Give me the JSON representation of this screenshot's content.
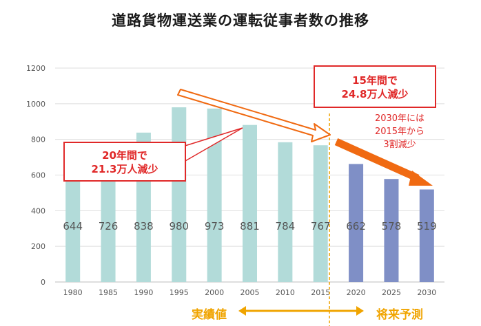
{
  "title": "道路貨物運送業の運転従事者数の推移",
  "chart_data": {
    "type": "bar",
    "categories": [
      "1980",
      "1985",
      "1990",
      "1995",
      "2000",
      "2005",
      "2010",
      "2015",
      "2020",
      "2025",
      "2030"
    ],
    "values": [
      644,
      726,
      838,
      980,
      973,
      881,
      784,
      767,
      662,
      578,
      519
    ],
    "bar_colors": [
      "#b2dbd9",
      "#b2dbd9",
      "#b2dbd9",
      "#b2dbd9",
      "#b2dbd9",
      "#b2dbd9",
      "#b2dbd9",
      "#b2dbd9",
      "#7f8fc6",
      "#7f8fc6",
      "#7f8fc6"
    ],
    "ylim": [
      0,
      1200
    ],
    "yticks": [
      0,
      200,
      400,
      600,
      800,
      1000,
      1200
    ],
    "grid": true,
    "xlabel": "",
    "ylabel": ""
  },
  "annotations": {
    "callout_left": [
      "20年間で",
      "21.3万人減少"
    ],
    "callout_right": [
      "15年間で",
      "24.8万人減少"
    ],
    "note_2030": [
      "2030年には",
      "2015年から",
      "3割減少"
    ]
  },
  "periods": {
    "actual": "実績値",
    "forecast": "将来予測"
  },
  "colors": {
    "actual_bar": "#b2dbd9",
    "forecast_bar": "#7f8fc6",
    "accent_red": "#e02828",
    "arrow_orange": "#f06a12",
    "divider": "#f0a400"
  }
}
